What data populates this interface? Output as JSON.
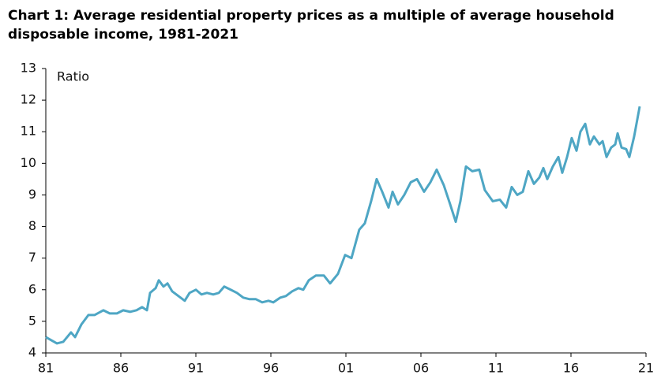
{
  "chart_data": {
    "type": "line",
    "title": "Chart 1: Average residential property prices as a multiple of average household disposable income, 1981-2021",
    "annotations": [
      "Ratio"
    ],
    "x": [
      1981.0,
      1981.37,
      1981.74,
      1982.16,
      1982.68,
      1982.95,
      1983.37,
      1983.84,
      1984.26,
      1984.84,
      1985.26,
      1985.74,
      1986.16,
      1986.63,
      1987.05,
      1987.42,
      1987.74,
      1987.95,
      1988.32,
      1988.53,
      1988.84,
      1989.11,
      1989.42,
      1989.84,
      1990.26,
      1990.58,
      1991.0,
      1991.37,
      1991.74,
      1992.16,
      1992.53,
      1992.89,
      1993.32,
      1993.74,
      1994.16,
      1994.58,
      1995.0,
      1995.42,
      1995.84,
      1996.16,
      1996.63,
      1997.0,
      1997.42,
      1997.84,
      1998.16,
      1998.53,
      1999.0,
      1999.53,
      1999.95,
      2000.47,
      2000.95,
      2001.37,
      2001.89,
      2002.26,
      2002.68,
      2003.05,
      2003.42,
      2003.84,
      2004.11,
      2004.47,
      2004.89,
      2005.32,
      2005.74,
      2006.21,
      2006.63,
      2007.05,
      2007.53,
      2007.95,
      2008.32,
      2008.63,
      2009.0,
      2009.42,
      2009.89,
      2010.26,
      2010.79,
      2011.26,
      2011.68,
      2012.05,
      2012.42,
      2012.79,
      2013.16,
      2013.53,
      2013.89,
      2014.16,
      2014.42,
      2014.79,
      2015.16,
      2015.42,
      2015.74,
      2016.05,
      2016.37,
      2016.63,
      2016.95,
      2017.26,
      2017.53,
      2017.89,
      2018.11,
      2018.37,
      2018.68,
      2018.95,
      2019.11,
      2019.37,
      2019.68,
      2019.89,
      2020.21,
      2020.58
    ],
    "series": [
      {
        "name": "Ratio",
        "color": "#4ea6c4",
        "values": [
          4.5,
          4.4,
          4.3,
          4.35,
          4.65,
          4.5,
          4.9,
          5.2,
          5.2,
          5.35,
          5.25,
          5.25,
          5.35,
          5.3,
          5.35,
          5.45,
          5.35,
          5.9,
          6.05,
          6.3,
          6.1,
          6.2,
          5.95,
          5.8,
          5.65,
          5.9,
          6.0,
          5.85,
          5.9,
          5.85,
          5.9,
          6.1,
          6.0,
          5.9,
          5.75,
          5.7,
          5.7,
          5.6,
          5.65,
          5.6,
          5.75,
          5.8,
          5.95,
          6.05,
          6.0,
          6.3,
          6.45,
          6.45,
          6.2,
          6.5,
          7.1,
          7.0,
          7.9,
          8.1,
          8.8,
          9.5,
          9.1,
          8.6,
          9.1,
          8.7,
          9.0,
          9.4,
          9.5,
          9.1,
          9.4,
          9.8,
          9.3,
          8.7,
          8.15,
          8.8,
          9.9,
          9.75,
          9.8,
          9.15,
          8.8,
          8.85,
          8.6,
          9.25,
          9.0,
          9.1,
          9.75,
          9.35,
          9.55,
          9.85,
          9.5,
          9.9,
          10.2,
          9.7,
          10.2,
          10.8,
          10.4,
          11.0,
          11.25,
          10.6,
          10.85,
          10.6,
          10.7,
          10.2,
          10.5,
          10.6,
          10.95,
          10.5,
          10.45,
          10.2,
          10.85,
          11.8
        ]
      }
    ],
    "xlim": [
      1981,
      2021
    ],
    "xticks": [
      {
        "value": 1981,
        "label": "81"
      },
      {
        "value": 1986,
        "label": "86"
      },
      {
        "value": 1991,
        "label": "91"
      },
      {
        "value": 1996,
        "label": "96"
      },
      {
        "value": 2001,
        "label": "01"
      },
      {
        "value": 2006,
        "label": "06"
      },
      {
        "value": 2011,
        "label": "11"
      },
      {
        "value": 2016,
        "label": "16"
      },
      {
        "value": 2021,
        "label": "21"
      }
    ],
    "ylim": [
      4,
      13
    ],
    "yticks": [
      4,
      5,
      6,
      7,
      8,
      9,
      10,
      11,
      12,
      13
    ],
    "grid": false
  }
}
